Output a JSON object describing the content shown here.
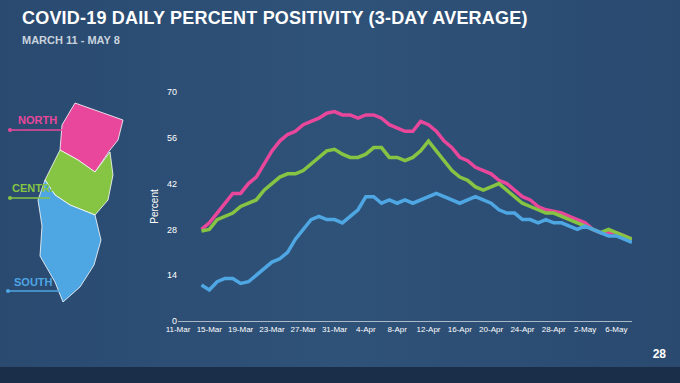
{
  "chart_data": {
    "type": "line",
    "title": "COVID-19 DAILY PERCENT POSITIVITY (3-DAY AVERAGE)",
    "subtitle": "MARCH 11 - MAY 8",
    "y_label": "Percent",
    "annotations": [
      "28"
    ],
    "categories": [
      "11-Mar",
      null,
      null,
      null,
      "15-Mar",
      null,
      null,
      null,
      "19-Mar",
      null,
      null,
      null,
      "23-Mar",
      null,
      null,
      null,
      "27-Mar",
      null,
      null,
      null,
      "31-Mar",
      null,
      null,
      null,
      "4-Apr",
      null,
      null,
      null,
      "8-Apr",
      null,
      null,
      null,
      "12-Apr",
      null,
      null,
      null,
      "16-Apr",
      null,
      null,
      null,
      "20-Apr",
      null,
      null,
      null,
      "24-Apr",
      null,
      null,
      null,
      "28-Apr",
      null,
      null,
      null,
      "2-May",
      null,
      null,
      null,
      "6-May",
      null,
      null
    ],
    "series": [
      {
        "name": "NORTH",
        "color": "#e8479b",
        "values": [
          null,
          null,
          null,
          28,
          30,
          33,
          36,
          39,
          39,
          42,
          44,
          48,
          52,
          55,
          57,
          58,
          60,
          61,
          62,
          63.5,
          64,
          63,
          63,
          62,
          63,
          63,
          62,
          60,
          59,
          58,
          58,
          61,
          60,
          58,
          55,
          53,
          50,
          49,
          47,
          46,
          45,
          43,
          42,
          40,
          38,
          37,
          35,
          34,
          33.5,
          33,
          32,
          31,
          30,
          28,
          27,
          27,
          27,
          26,
          25
        ]
      },
      {
        "name": "CENTRAL",
        "color": "#86c443",
        "values": [
          null,
          null,
          null,
          27.5,
          28,
          31,
          32,
          33,
          35,
          36,
          37,
          40,
          42,
          44,
          45,
          45,
          46,
          48,
          50,
          52,
          52.5,
          51,
          50,
          50,
          51,
          53,
          53,
          50,
          50,
          49,
          50,
          52,
          55,
          52,
          49,
          46,
          44,
          43,
          41,
          40,
          41,
          42,
          40,
          38,
          36,
          35,
          34,
          33,
          33,
          32,
          31,
          30,
          29,
          28,
          27,
          28,
          27,
          26,
          25
        ]
      },
      {
        "name": "SOUTH",
        "color": "#4ea6e2",
        "values": [
          null,
          null,
          null,
          11,
          9.5,
          12,
          13,
          13,
          11.5,
          12,
          14,
          16,
          18,
          19,
          21,
          25,
          28,
          31,
          32,
          31,
          31,
          30,
          32,
          34,
          38,
          38,
          36,
          37,
          36,
          37,
          36,
          37,
          38,
          39,
          38,
          37,
          36,
          37,
          38,
          37,
          36,
          34,
          33,
          33,
          31,
          31,
          30,
          31,
          30,
          30,
          29,
          28,
          29,
          28,
          27,
          26,
          26,
          25,
          24
        ]
      }
    ],
    "ylim": [
      0,
      70
    ],
    "yticks": [
      0,
      14,
      28,
      42,
      56,
      70
    ],
    "grid": false
  }
}
